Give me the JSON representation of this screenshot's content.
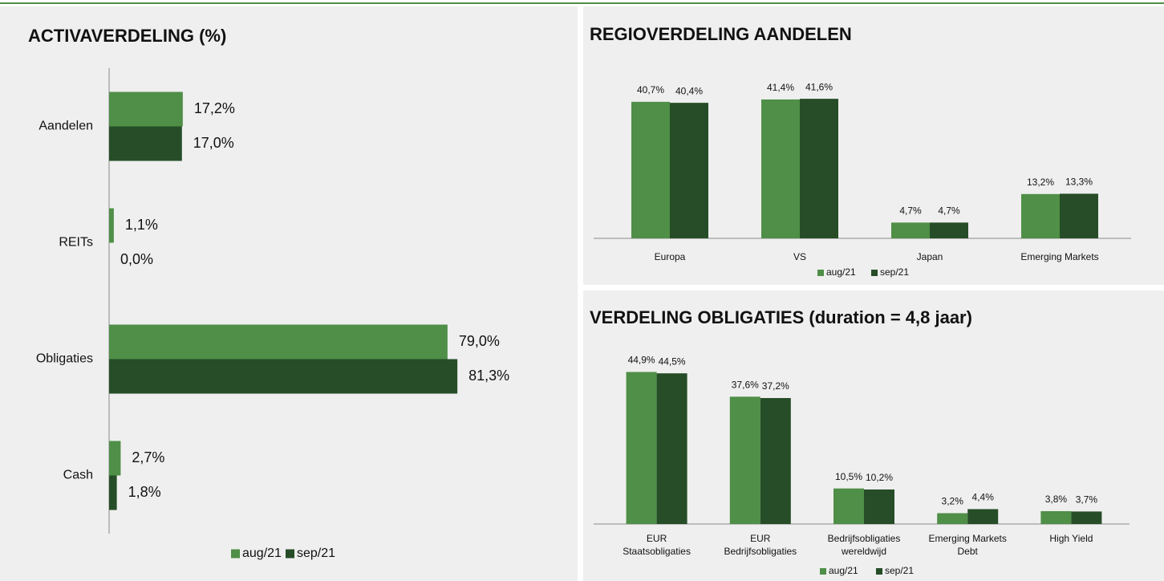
{
  "chart_data": [
    {
      "type": "barh",
      "title": "ACTIVAVERDELING (%)",
      "categories": [
        "Aandelen",
        "REITs",
        "Obligaties",
        "Cash"
      ],
      "series": [
        {
          "name": "aug/21",
          "color": "#4f8f47",
          "values": [
            17.2,
            1.1,
            79.0,
            2.7
          ],
          "value_labels": [
            "17,2%",
            "1,1%",
            "79,0%",
            "2,7%"
          ]
        },
        {
          "name": "sep/21",
          "color": "#264d27",
          "values": [
            17.0,
            0.0,
            81.3,
            1.8
          ],
          "value_labels": [
            "17,0%",
            "0,0%",
            "81,3%",
            "1,8%"
          ]
        }
      ],
      "xlim": [
        0,
        100
      ]
    },
    {
      "type": "bar",
      "title": "REGIOVERDELING AANDELEN",
      "categories": [
        [
          "Europa"
        ],
        [
          "VS"
        ],
        [
          "Japan"
        ],
        [
          "Emerging Markets"
        ]
      ],
      "series": [
        {
          "name": "aug/21",
          "color": "#4f8f47",
          "values": [
            40.7,
            41.4,
            4.7,
            13.2
          ],
          "value_labels": [
            "40,7%",
            "41,4%",
            "4,7%",
            "13,2%"
          ]
        },
        {
          "name": "sep/21",
          "color": "#264d27",
          "values": [
            40.4,
            41.6,
            4.7,
            13.3
          ],
          "value_labels": [
            "40,4%",
            "41,6%",
            "4,7%",
            "13,3%"
          ]
        }
      ],
      "ylim": [
        0,
        50
      ]
    },
    {
      "type": "bar",
      "title": "VERDELING OBLIGATIES (duration = 4,8 jaar)",
      "categories": [
        [
          "EUR",
          "Staatsobligaties"
        ],
        [
          "EUR",
          "Bedrijfsobligaties"
        ],
        [
          "Bedrijfsobligaties",
          "wereldwijd"
        ],
        [
          "Emerging Markets",
          "Debt"
        ],
        [
          "High Yield"
        ]
      ],
      "series": [
        {
          "name": "aug/21",
          "color": "#4f8f47",
          "values": [
            44.9,
            37.6,
            10.5,
            3.2,
            3.8
          ],
          "value_labels": [
            "44,9%",
            "37,6%",
            "10,5%",
            "3,2%",
            "3,8%"
          ]
        },
        {
          "name": "sep/21",
          "color": "#264d27",
          "values": [
            44.5,
            37.2,
            10.2,
            4.4,
            3.7
          ],
          "value_labels": [
            "44,5%",
            "37,2%",
            "10,2%",
            "4,4%",
            "3,7%"
          ]
        }
      ],
      "ylim": [
        0,
        50
      ]
    }
  ]
}
